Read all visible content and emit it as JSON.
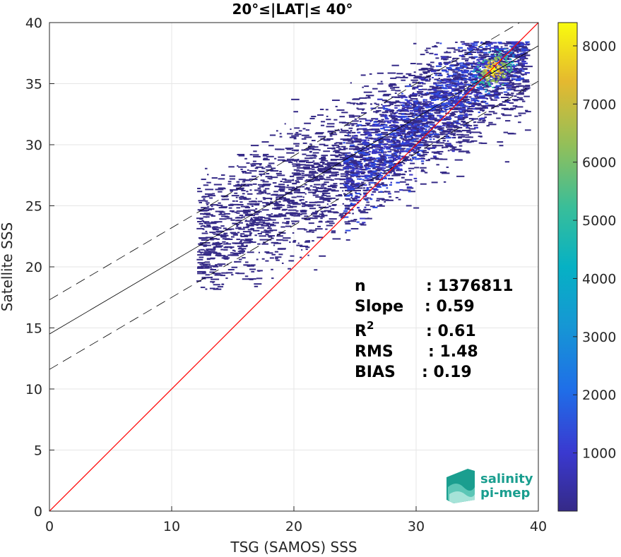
{
  "chart_data": {
    "type": "heatmap",
    "title": "20°≤|LAT|≤ 40°",
    "xlabel": "TSG (SAMOS) SSS",
    "ylabel": "Satellite SSS",
    "xlim": [
      0,
      40
    ],
    "ylim": [
      0,
      40
    ],
    "xticks": [
      "0",
      "10",
      "20",
      "30",
      "40"
    ],
    "yticks": [
      "0",
      "5",
      "10",
      "15",
      "20",
      "25",
      "30",
      "35",
      "40"
    ],
    "grid": true,
    "colorbar": {
      "range": [
        0,
        8400
      ],
      "ticks": [
        "1000",
        "2000",
        "3000",
        "4000",
        "5000",
        "6000",
        "7000",
        "8000"
      ],
      "colormap": "parula"
    },
    "density_peak": {
      "x": 36.3,
      "y": 36.2
    },
    "lines": {
      "identity": {
        "slope": 1,
        "intercept": 0,
        "color": "#ff0000"
      },
      "regression": {
        "slope": 0.59,
        "intercept": 14.5,
        "color": "#000000"
      },
      "upper_band": {
        "slope": 0.59,
        "intercept": 17.3,
        "style": "dashed"
      },
      "lower_band": {
        "slope": 0.59,
        "intercept": 11.6,
        "style": "dashed"
      }
    },
    "stats": {
      "n_label": "n",
      "n_value": ": 1376811",
      "slope_label": "Slope",
      "slope_value": ": 0.59",
      "r2_label": "R",
      "r2_sup": "2",
      "r2_value": ": 0.61",
      "rms_label": "RMS",
      "rms_value": ": 1.48",
      "bias_label": "BIAS",
      "bias_value": ": 0.19"
    }
  },
  "logo": {
    "line1": "salinity",
    "line2": "pi-mep",
    "color": "#1a9e8f"
  }
}
